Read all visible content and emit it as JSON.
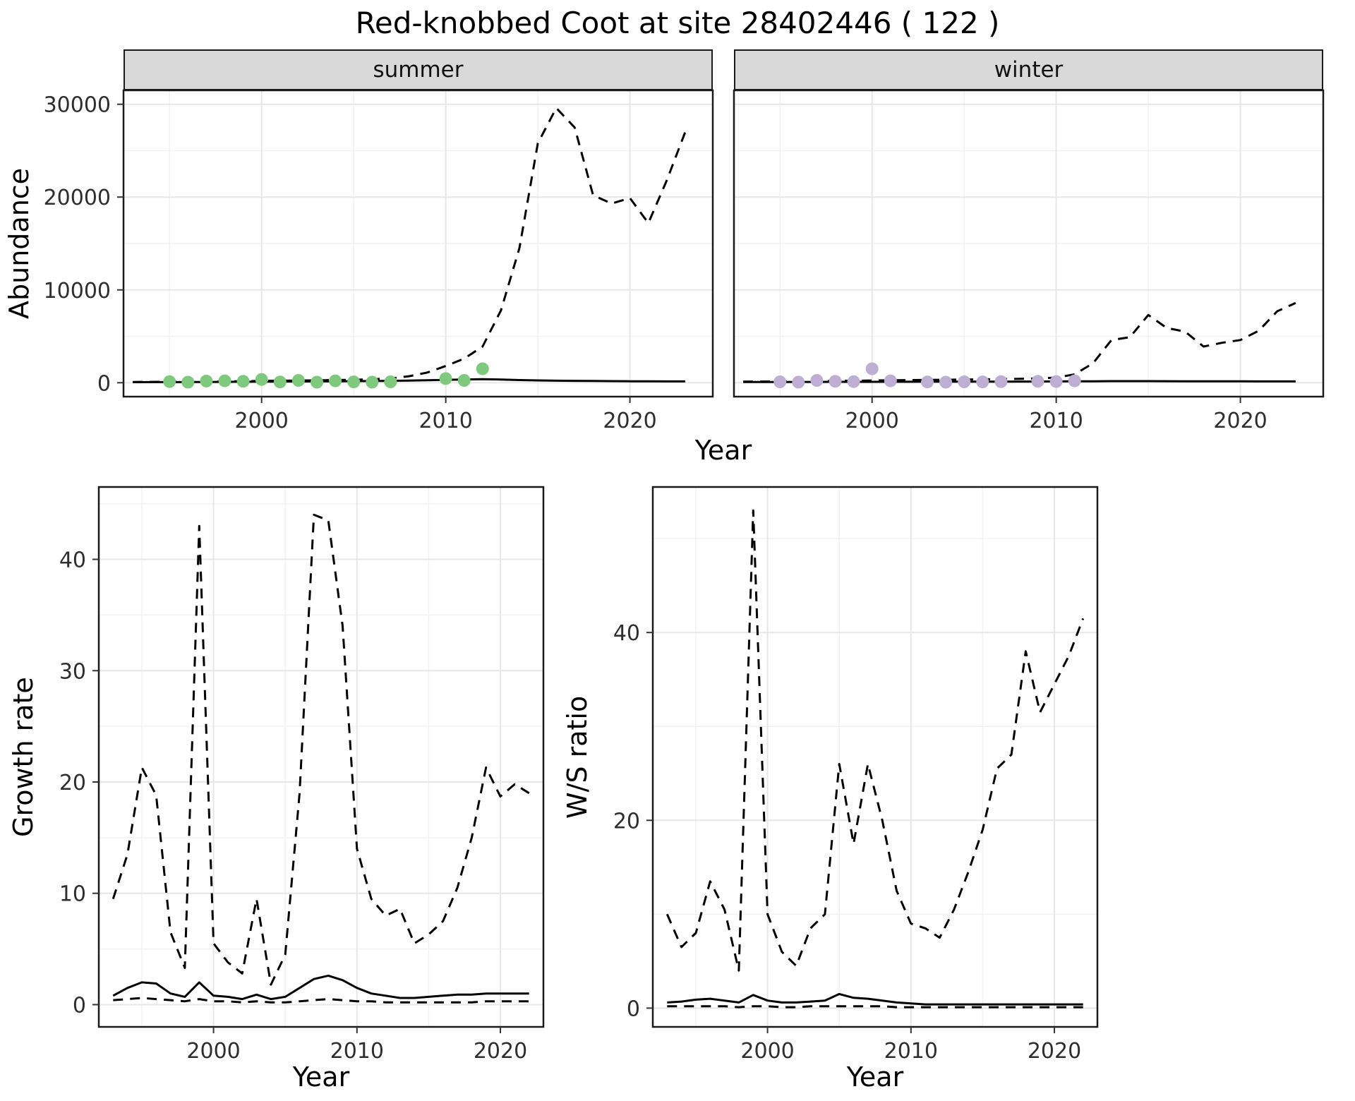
{
  "title": "Red-knobbed Coot at site 28402446 ( 122 )",
  "top_chart": {
    "ylabel": "Abundance",
    "xlabel": "Year",
    "facet_labels": [
      "summer",
      "winter"
    ]
  },
  "colors": {
    "summer_points": "#7FC97F",
    "winter_points": "#BEAED4",
    "line": "#000000",
    "strip_bg": "#D9D9D9",
    "grid_major": "#E7E7E7",
    "grid_minor": "#F2F2F2",
    "panel_border": "#1A1A1A",
    "tick": "#333333",
    "tick_text": "#2E2E2E"
  },
  "chart_data": [
    {
      "id": "abundance-summer",
      "type": "line",
      "facet": "summer",
      "xlabel": "Year",
      "ylabel": "Abundance",
      "xlim": [
        1992.5,
        2024.5
      ],
      "ylim": [
        -1500,
        31500
      ],
      "xticks": [
        2000,
        2010,
        2020
      ],
      "yticks": [
        0,
        10000,
        20000,
        30000
      ],
      "xticks_minor": [
        1995,
        2005,
        2015
      ],
      "yticks_minor": [
        5000,
        15000,
        25000
      ],
      "points": {
        "name": "summer-count",
        "color": "#7FC97F",
        "x": [
          1995,
          1996,
          1997,
          1998,
          1999,
          2000,
          2001,
          2002,
          2003,
          2004,
          2005,
          2006,
          2007,
          2010,
          2011,
          2012
        ],
        "y": [
          120,
          60,
          180,
          200,
          150,
          350,
          80,
          250,
          60,
          200,
          90,
          60,
          100,
          450,
          250,
          1500
        ]
      },
      "series": [
        {
          "name": "model-upper",
          "style": "dashed",
          "x": [
            1993,
            1994,
            1995,
            1996,
            1997,
            1998,
            1999,
            2000,
            2001,
            2002,
            2003,
            2004,
            2005,
            2006,
            2007,
            2008,
            2009,
            2010,
            2011,
            2012,
            2013,
            2014,
            2015,
            2016,
            2017,
            2018,
            2019,
            2020,
            2021,
            2022,
            2023
          ],
          "y": [
            80,
            90,
            100,
            110,
            120,
            140,
            160,
            200,
            210,
            230,
            260,
            290,
            320,
            370,
            460,
            700,
            1100,
            1800,
            2600,
            3900,
            7800,
            14500,
            25800,
            29600,
            27500,
            20200,
            19300,
            19900,
            17200,
            21800,
            27000
          ]
        },
        {
          "name": "model-fit",
          "style": "solid",
          "x": [
            1993,
            1994,
            1995,
            1996,
            1997,
            1998,
            1999,
            2000,
            2001,
            2002,
            2003,
            2004,
            2005,
            2006,
            2007,
            2008,
            2009,
            2010,
            2011,
            2012,
            2013,
            2014,
            2015,
            2016,
            2017,
            2018,
            2019,
            2020,
            2021,
            2022,
            2023
          ],
          "y": [
            60,
            65,
            70,
            75,
            85,
            95,
            105,
            115,
            125,
            135,
            145,
            155,
            165,
            180,
            200,
            230,
            270,
            310,
            350,
            380,
            340,
            290,
            250,
            220,
            200,
            185,
            170,
            160,
            150,
            145,
            140
          ]
        }
      ]
    },
    {
      "id": "abundance-winter",
      "type": "line",
      "facet": "winter",
      "xlabel": "Year",
      "ylabel": "Abundance",
      "xlim": [
        1992.5,
        2024.5
      ],
      "ylim": [
        -1500,
        31500
      ],
      "xticks": [
        2000,
        2010,
        2020
      ],
      "yticks": [
        0,
        10000,
        20000,
        30000
      ],
      "xticks_minor": [
        1995,
        2005,
        2015
      ],
      "yticks_minor": [
        5000,
        15000,
        25000
      ],
      "points": {
        "name": "winter-count",
        "color": "#BEAED4",
        "x": [
          1995,
          1996,
          1997,
          1998,
          1999,
          2000,
          2001,
          2003,
          2004,
          2005,
          2006,
          2007,
          2009,
          2010,
          2011
        ],
        "y": [
          100,
          60,
          250,
          150,
          120,
          1500,
          200,
          80,
          60,
          100,
          90,
          110,
          150,
          130,
          200
        ]
      },
      "series": [
        {
          "name": "model-upper",
          "style": "dashed",
          "x": [
            1993,
            1994,
            1995,
            1996,
            1997,
            1998,
            1999,
            2000,
            2001,
            2002,
            2003,
            2004,
            2005,
            2006,
            2007,
            2008,
            2009,
            2010,
            2011,
            2012,
            2013,
            2014,
            2015,
            2016,
            2017,
            2018,
            2019,
            2020,
            2021,
            2022,
            2023
          ],
          "y": [
            120,
            130,
            140,
            150,
            170,
            190,
            210,
            240,
            260,
            280,
            300,
            320,
            340,
            360,
            390,
            420,
            460,
            550,
            900,
            2100,
            4600,
            4900,
            7300,
            5900,
            5500,
            3900,
            4300,
            4600,
            5600,
            7700,
            8600
          ]
        },
        {
          "name": "model-fit",
          "style": "solid",
          "x": [
            1993,
            1994,
            1995,
            1996,
            1997,
            1998,
            1999,
            2000,
            2001,
            2002,
            2003,
            2004,
            2005,
            2006,
            2007,
            2008,
            2009,
            2010,
            2011,
            2012,
            2013,
            2014,
            2015,
            2016,
            2017,
            2018,
            2019,
            2020,
            2021,
            2022,
            2023
          ],
          "y": [
            80,
            82,
            85,
            88,
            90,
            95,
            98,
            100,
            105,
            108,
            110,
            112,
            115,
            118,
            120,
            125,
            130,
            140,
            150,
            160,
            170,
            175,
            170,
            165,
            160,
            155,
            150,
            148,
            145,
            142,
            140
          ]
        }
      ]
    },
    {
      "id": "growth-rate",
      "type": "line",
      "xlabel": "Year",
      "ylabel": "Growth rate",
      "xlim": [
        1992,
        2023
      ],
      "ylim": [
        -2,
        46.5
      ],
      "xticks": [
        2000,
        2010,
        2020
      ],
      "yticks": [
        0,
        10,
        20,
        30,
        40
      ],
      "xticks_minor": [
        1995,
        2005,
        2015
      ],
      "yticks_minor": [
        5,
        15,
        25,
        35,
        45
      ],
      "series": [
        {
          "name": "upper-ci",
          "style": "dashed",
          "x": [
            1993,
            1994,
            1995,
            1996,
            1997,
            1998,
            1999,
            2000,
            2001,
            2002,
            2003,
            2004,
            2005,
            2006,
            2007,
            2008,
            2009,
            2010,
            2011,
            2012,
            2013,
            2014,
            2015,
            2016,
            2017,
            2018,
            2019,
            2020,
            2021,
            2022
          ],
          "y": [
            9.5,
            13.5,
            21.3,
            18.8,
            6.5,
            3.3,
            43,
            5.5,
            3.8,
            2.8,
            9.5,
            1.8,
            4.5,
            19,
            44,
            43.5,
            34,
            14,
            9.5,
            8,
            8.6,
            5.5,
            6.3,
            7.5,
            10.5,
            15,
            21.3,
            18.7,
            19.8,
            19
          ]
        },
        {
          "name": "estimate",
          "style": "solid",
          "x": [
            1993,
            1994,
            1995,
            1996,
            1997,
            1998,
            1999,
            2000,
            2001,
            2002,
            2003,
            2004,
            2005,
            2006,
            2007,
            2008,
            2009,
            2010,
            2011,
            2012,
            2013,
            2014,
            2015,
            2016,
            2017,
            2018,
            2019,
            2020,
            2021,
            2022
          ],
          "y": [
            0.8,
            1.5,
            2.0,
            1.9,
            1.0,
            0.7,
            2.0,
            0.8,
            0.7,
            0.5,
            0.9,
            0.5,
            0.7,
            1.5,
            2.3,
            2.6,
            2.2,
            1.5,
            1.0,
            0.8,
            0.6,
            0.6,
            0.7,
            0.8,
            0.9,
            0.9,
            1.0,
            1.0,
            1.0,
            1.0
          ]
        },
        {
          "name": "lower-ci",
          "style": "dashed",
          "x": [
            1993,
            1994,
            1995,
            1996,
            1997,
            1998,
            1999,
            2000,
            2001,
            2002,
            2003,
            2004,
            2005,
            2006,
            2007,
            2008,
            2009,
            2010,
            2011,
            2012,
            2013,
            2014,
            2015,
            2016,
            2017,
            2018,
            2019,
            2020,
            2021,
            2022
          ],
          "y": [
            0.4,
            0.5,
            0.6,
            0.5,
            0.4,
            0.3,
            0.5,
            0.3,
            0.3,
            0.2,
            0.3,
            0.2,
            0.2,
            0.3,
            0.4,
            0.5,
            0.4,
            0.3,
            0.3,
            0.2,
            0.2,
            0.2,
            0.2,
            0.2,
            0.2,
            0.2,
            0.3,
            0.3,
            0.3,
            0.3
          ]
        }
      ]
    },
    {
      "id": "ws-ratio",
      "type": "line",
      "xlabel": "Year",
      "ylabel": "W/S ratio",
      "xlim": [
        1992,
        2023
      ],
      "ylim": [
        -2,
        55.5
      ],
      "xticks": [
        2000,
        2010,
        2020
      ],
      "yticks": [
        0,
        20,
        40
      ],
      "xticks_minor": [
        1995,
        2005,
        2015
      ],
      "yticks_minor": [
        10,
        30,
        50
      ],
      "series": [
        {
          "name": "upper-ci",
          "style": "dashed",
          "x": [
            1993,
            1994,
            1995,
            1996,
            1997,
            1998,
            1999,
            2000,
            2001,
            2002,
            2003,
            2004,
            2005,
            2006,
            2007,
            2008,
            2009,
            2010,
            2011,
            2012,
            2013,
            2014,
            2015,
            2016,
            2017,
            2018,
            2019,
            2020,
            2021,
            2022
          ],
          "y": [
            10,
            6.5,
            8,
            13.5,
            10.5,
            4,
            53,
            10,
            6,
            4.5,
            8.5,
            10,
            26,
            17.5,
            26,
            20,
            12.5,
            9,
            8.5,
            7.5,
            10.5,
            14.5,
            19,
            25.5,
            27,
            38,
            31.5,
            34.5,
            37.5,
            41.5
          ]
        },
        {
          "name": "estimate",
          "style": "solid",
          "x": [
            1993,
            1994,
            1995,
            1996,
            1997,
            1998,
            1999,
            2000,
            2001,
            2002,
            2003,
            2004,
            2005,
            2006,
            2007,
            2008,
            2009,
            2010,
            2011,
            2012,
            2013,
            2014,
            2015,
            2016,
            2017,
            2018,
            2019,
            2020,
            2021,
            2022
          ],
          "y": [
            0.6,
            0.7,
            0.9,
            1.0,
            0.8,
            0.6,
            1.4,
            0.8,
            0.6,
            0.6,
            0.7,
            0.8,
            1.5,
            1.1,
            1.0,
            0.8,
            0.6,
            0.5,
            0.4,
            0.4,
            0.4,
            0.4,
            0.4,
            0.4,
            0.4,
            0.4,
            0.4,
            0.4,
            0.4,
            0.4
          ]
        },
        {
          "name": "lower-ci",
          "style": "dashed",
          "x": [
            1993,
            1994,
            1995,
            1996,
            1997,
            1998,
            1999,
            2000,
            2001,
            2002,
            2003,
            2004,
            2005,
            2006,
            2007,
            2008,
            2009,
            2010,
            2011,
            2012,
            2013,
            2014,
            2015,
            2016,
            2017,
            2018,
            2019,
            2020,
            2021,
            2022
          ],
          "y": [
            0.2,
            0.2,
            0.2,
            0.2,
            0.2,
            0.1,
            0.2,
            0.2,
            0.1,
            0.1,
            0.2,
            0.2,
            0.2,
            0.2,
            0.2,
            0.2,
            0.1,
            0.1,
            0.1,
            0.1,
            0.1,
            0.1,
            0.1,
            0.1,
            0.1,
            0.1,
            0.1,
            0.1,
            0.1,
            0.1
          ]
        }
      ]
    }
  ]
}
